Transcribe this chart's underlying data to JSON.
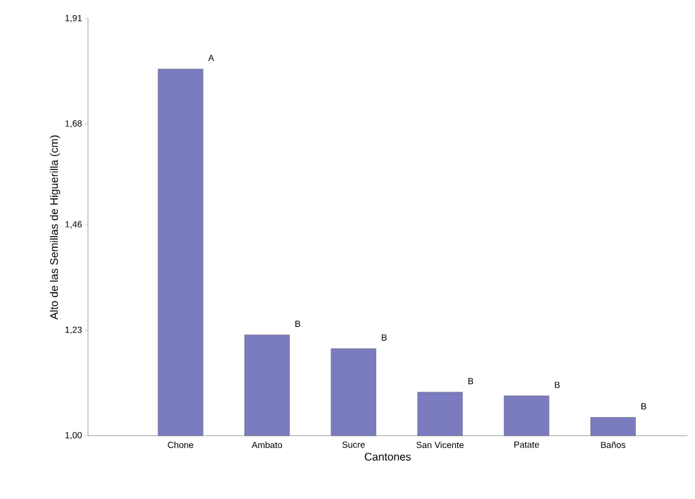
{
  "chart_data": {
    "type": "bar",
    "xlabel": "Cantones",
    "ylabel": "Alto de las Semillas de Higuerilla (cm)",
    "categories": [
      "Chone",
      "Ambato",
      "Sucre",
      "San Vicente",
      "Patate",
      "Baños"
    ],
    "values": [
      1.8,
      1.22,
      1.19,
      1.095,
      1.087,
      1.04
    ],
    "color": "#7b7bbf",
    "ylim": [
      1.0,
      1.91
    ],
    "yticks": [
      {
        "value": 1.0,
        "label": "1,00"
      },
      {
        "value": 1.23,
        "label": "1,23"
      },
      {
        "value": 1.46,
        "label": "1,46"
      },
      {
        "value": 1.68,
        "label": "1,68"
      },
      {
        "value": 1.91,
        "label": "1,91"
      }
    ],
    "grid": false,
    "annotations": [
      "A",
      "B",
      "B",
      "B",
      "B",
      "B"
    ]
  }
}
